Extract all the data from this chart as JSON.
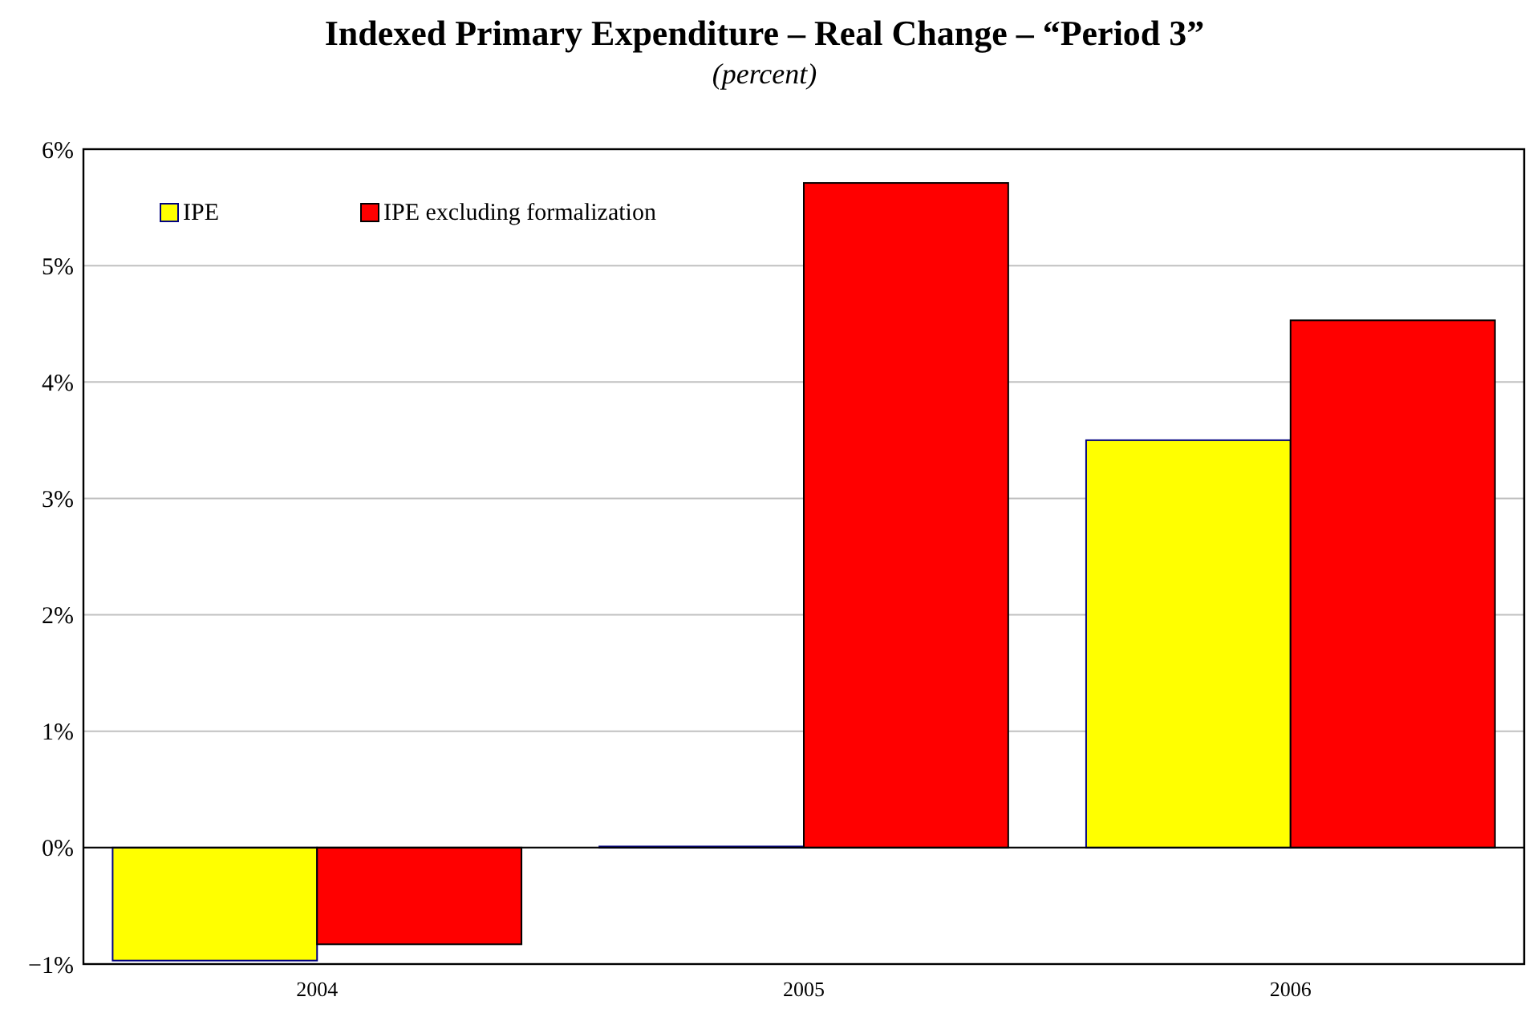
{
  "chart_data": {
    "type": "bar",
    "title": "Indexed Primary Expenditure – Real Change – “Period 3”",
    "subtitle": "(percent)",
    "categories": [
      "2004",
      "2005",
      "2006"
    ],
    "series": [
      {
        "name": "IPE",
        "color": "#ffff00",
        "values": [
          -0.97,
          0.01,
          3.5
        ]
      },
      {
        "name": "IPE excluding formalization",
        "color": "#ff0000",
        "values": [
          -0.83,
          5.71,
          4.53
        ]
      }
    ],
    "ylim": [
      -1,
      6
    ],
    "yticks": [
      {
        "value": -1,
        "label": "−1%"
      },
      {
        "value": 0,
        "label": "0%"
      },
      {
        "value": 1,
        "label": "1%"
      },
      {
        "value": 2,
        "label": "2%"
      },
      {
        "value": 3,
        "label": "3%"
      },
      {
        "value": 4,
        "label": "4%"
      },
      {
        "value": 5,
        "label": "5%"
      },
      {
        "value": 6,
        "label": "6%"
      }
    ],
    "grid": "y",
    "legend": "top left"
  }
}
